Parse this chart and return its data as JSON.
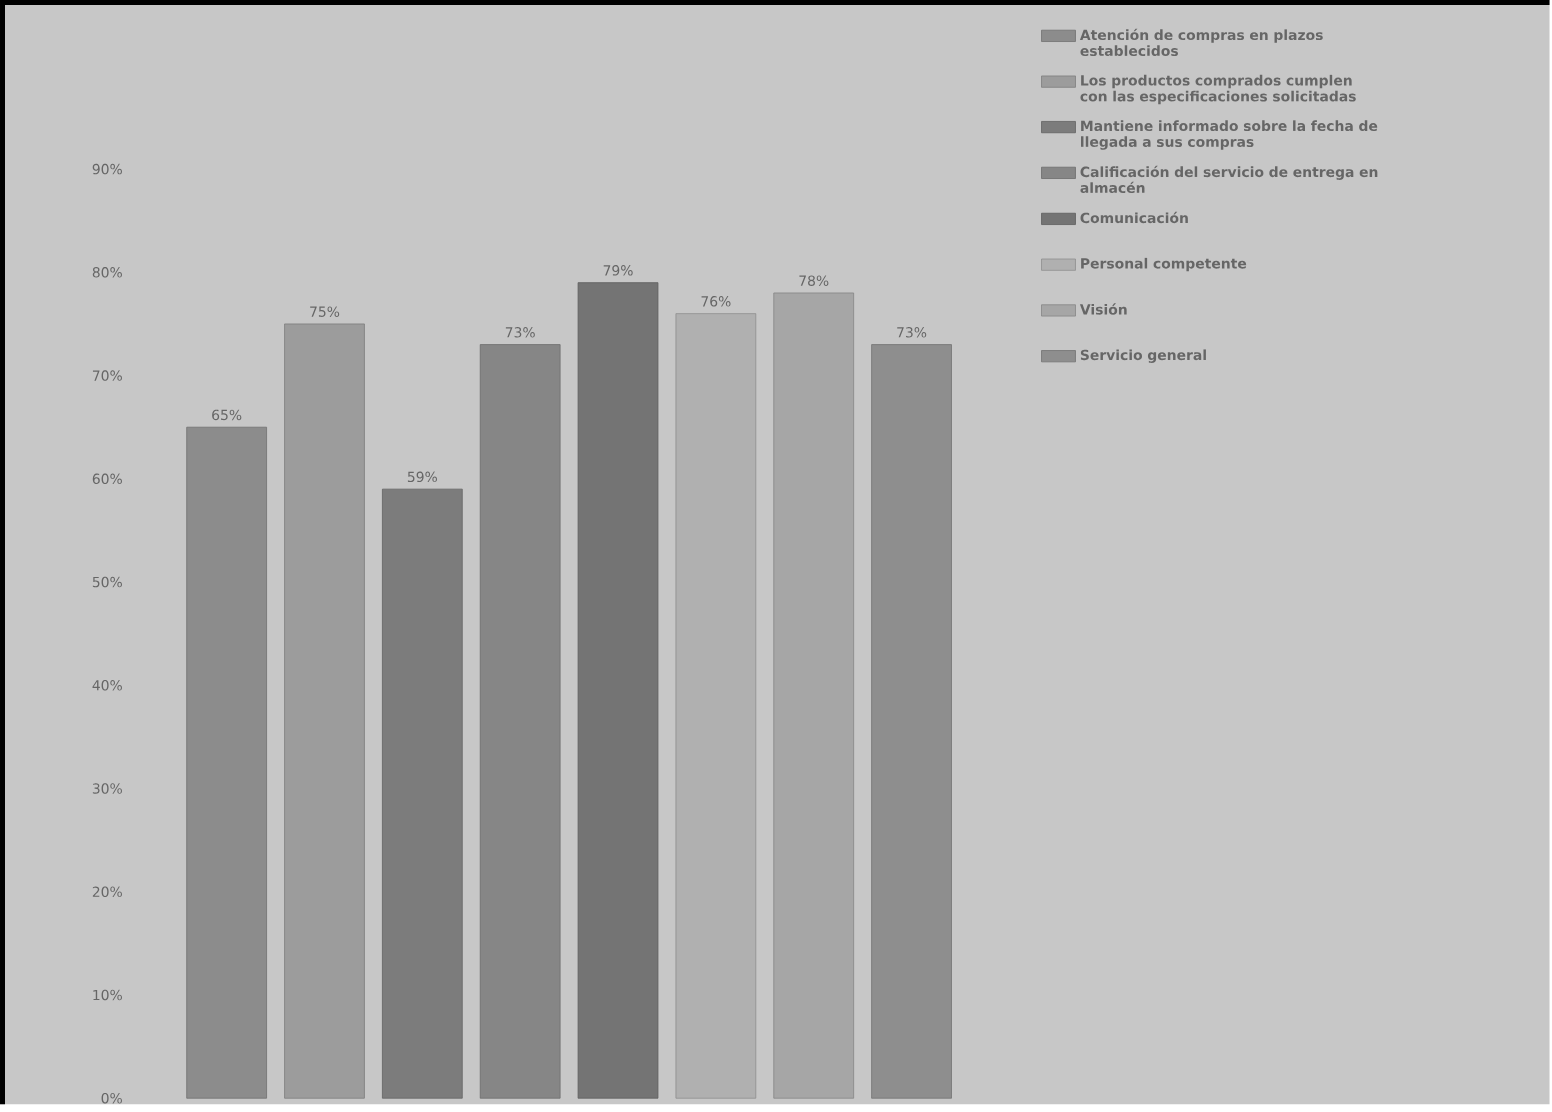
{
  "chart_data": {
    "type": "bar",
    "categories": [
      null
    ],
    "ylim": [
      0,
      90
    ],
    "yticks": [
      {
        "value": 0,
        "label": "0%"
      },
      {
        "value": 10,
        "label": "10%"
      },
      {
        "value": 20,
        "label": "20%"
      },
      {
        "value": 30,
        "label": "30%"
      },
      {
        "value": 40,
        "label": "40%"
      },
      {
        "value": 50,
        "label": "50%"
      },
      {
        "value": 60,
        "label": "60%"
      },
      {
        "value": 70,
        "label": "70%"
      },
      {
        "value": 80,
        "label": "80%"
      },
      {
        "value": 90,
        "label": "90%"
      }
    ],
    "legend": "right",
    "series": [
      {
        "name": "Atención de compras en plazos establecidos",
        "color": "#8c8c8c",
        "values": [
          65
        ],
        "value_labels": [
          "65%"
        ]
      },
      {
        "name": "Los productos comprados cumplen con las especificaciones solicitadas",
        "color": "#9c9c9c",
        "values": [
          75
        ],
        "value_labels": [
          "75%"
        ]
      },
      {
        "name": "Mantiene informado sobre la fecha de llegada a sus compras",
        "color": "#7c7c7c",
        "values": [
          59
        ],
        "value_labels": [
          "59%"
        ]
      },
      {
        "name": "Calificación del servicio de entrega en almacén",
        "color": "#868686",
        "values": [
          73
        ],
        "value_labels": [
          "73%"
        ]
      },
      {
        "name": "Comunicación",
        "color": "#747474",
        "values": [
          79
        ],
        "value_labels": [
          "79%"
        ]
      },
      {
        "name": "Personal competente",
        "color": "#b0b0b0",
        "values": [
          76
        ],
        "value_labels": [
          "76%"
        ]
      },
      {
        "name": "Visión",
        "color": "#a6a6a6",
        "values": [
          78
        ],
        "value_labels": [
          "78%"
        ]
      },
      {
        "name": "Servicio general",
        "color": "#8e8e8e",
        "values": [
          73
        ],
        "value_labels": [
          "73%"
        ]
      }
    ]
  }
}
